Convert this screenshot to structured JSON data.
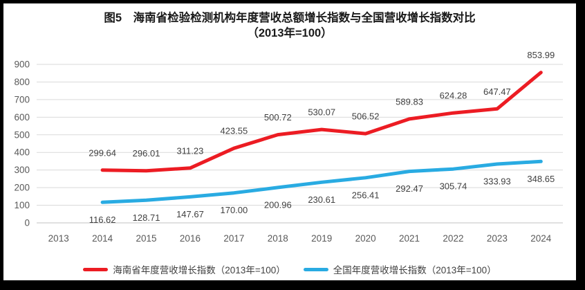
{
  "frame": {
    "background": "#000000",
    "panel_background": "#ffffff"
  },
  "title": {
    "line1": "图5　海南省检验检测机构年度营收总额增长指数与全国营收增长指数对比",
    "line2": "（2013年=100）"
  },
  "chart_data": {
    "type": "line",
    "title": "图5 海南省检验检测机构年度营收总额增长指数与全国营收增长指数对比（2013年=100）",
    "xlabel": "",
    "ylabel": "",
    "categories": [
      2013,
      2014,
      2015,
      2016,
      2017,
      2018,
      2019,
      2020,
      2021,
      2022,
      2023,
      2024
    ],
    "series": [
      {
        "key": "hainan",
        "name": "海南省年度营收增长指数（2013年=100）",
        "color": "#ec1c23",
        "stroke_width": 5,
        "label_offset": -25,
        "values": [
          null,
          299.64,
          296.01,
          311.23,
          423.55,
          500.72,
          530.07,
          506.52,
          589.83,
          624.28,
          647.47,
          853.99
        ]
      },
      {
        "key": "national",
        "name": "全国年度营收增长指数（2013年=100）",
        "color": "#29abe2",
        "stroke_width": 5,
        "label_offset": 25,
        "values": [
          null,
          116.62,
          128.71,
          147.67,
          170.0,
          200.96,
          230.61,
          256.41,
          292.47,
          305.74,
          333.93,
          348.65
        ]
      }
    ],
    "ylim": [
      0,
      900
    ],
    "y_ticks": [
      0,
      100,
      200,
      300,
      400,
      500,
      600,
      700,
      800,
      900
    ],
    "grid": true,
    "legend_position": "bottom",
    "decimals": 2,
    "colors": {
      "grid": "#d9d9d9",
      "axis_line": "#c0c0c0",
      "axis_text": "#595959",
      "data_label": "#404040",
      "title_text": "#1a1a1a"
    }
  }
}
